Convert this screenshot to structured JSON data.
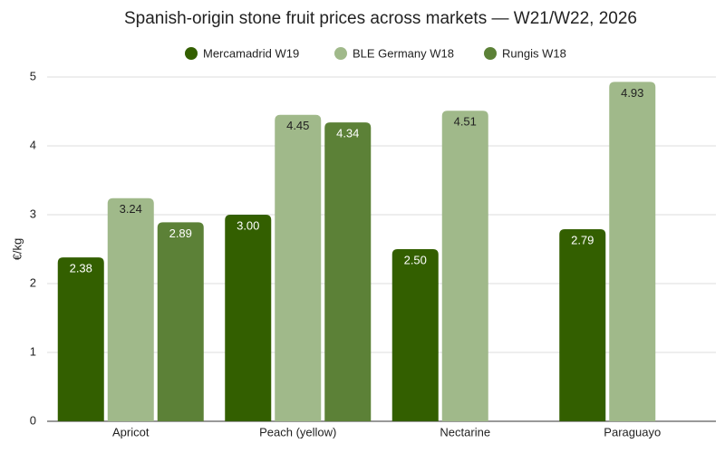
{
  "chart_data": {
    "type": "bar",
    "title": "Spanish-origin stone fruit prices across markets — W21/W22, 2026",
    "y_label": "€/kg",
    "categories": [
      "Apricot",
      "Peach (yellow)",
      "Nectarine",
      "Paraguayo"
    ],
    "series": [
      {
        "name": "Mercamadrid W19",
        "color": "#335f00",
        "values": [
          2.38,
          3.0,
          2.5,
          2.79
        ],
        "value_labels": [
          "2.38",
          "3.00",
          "2.50",
          "2.79"
        ]
      },
      {
        "name": "BLE Germany W18",
        "color": "#a0b98a",
        "values": [
          3.24,
          4.45,
          4.51,
          4.93
        ],
        "value_labels": [
          "3.24",
          "4.45",
          "4.51",
          "4.93"
        ]
      },
      {
        "name": "Rungis W18",
        "color": "#5c8137",
        "values": [
          2.89,
          4.34,
          null,
          null
        ],
        "value_labels": [
          "2.89",
          "4.34",
          null,
          null
        ]
      }
    ],
    "ylim": [
      0,
      5
    ],
    "yticks": [
      0,
      1,
      2,
      3,
      4,
      5
    ],
    "grid": true,
    "legend": "top"
  }
}
